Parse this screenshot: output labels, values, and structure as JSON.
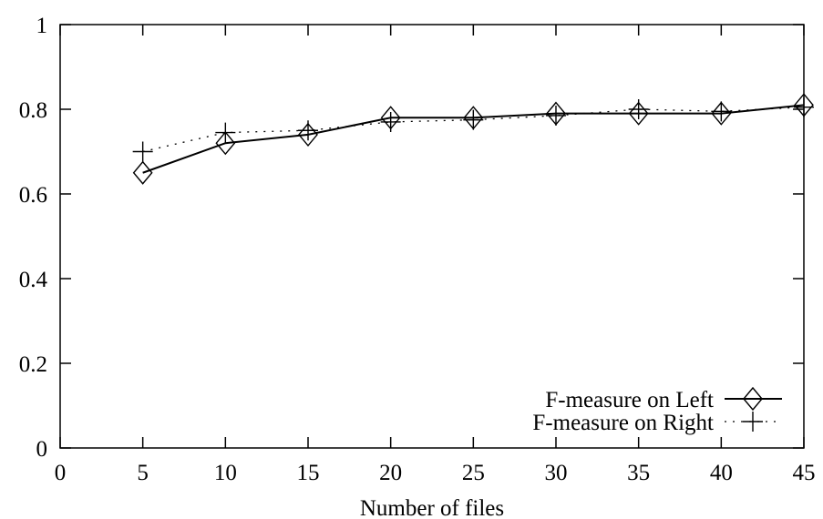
{
  "chart_data": {
    "type": "line",
    "title": "",
    "xlabel": "Number of files",
    "ylabel": "",
    "xlim": [
      0,
      45
    ],
    "ylim": [
      0,
      1
    ],
    "xticks": [
      0,
      5,
      10,
      15,
      20,
      25,
      30,
      35,
      40,
      45
    ],
    "yticks": [
      0,
      0.2,
      0.4,
      0.6,
      0.8,
      1
    ],
    "xtick_labels": [
      "0",
      "5",
      "10",
      "15",
      "20",
      "25",
      "30",
      "35",
      "40",
      "45"
    ],
    "ytick_labels": [
      "0",
      "0.2",
      "0.4",
      "0.6",
      "0.8",
      "1"
    ],
    "grid": false,
    "legend_position": "bottom-right",
    "x": [
      5,
      10,
      15,
      20,
      25,
      30,
      35,
      40,
      45
    ],
    "series": [
      {
        "name": "F-measure on Left",
        "marker": "diamond",
        "line_style": "solid",
        "values": [
          0.65,
          0.72,
          0.74,
          0.78,
          0.78,
          0.79,
          0.79,
          0.79,
          0.81
        ]
      },
      {
        "name": "F-measure on Right",
        "marker": "plus",
        "line_style": "dotted",
        "values": [
          0.7,
          0.745,
          0.75,
          0.77,
          0.775,
          0.785,
          0.8,
          0.795,
          0.805
        ]
      }
    ]
  }
}
